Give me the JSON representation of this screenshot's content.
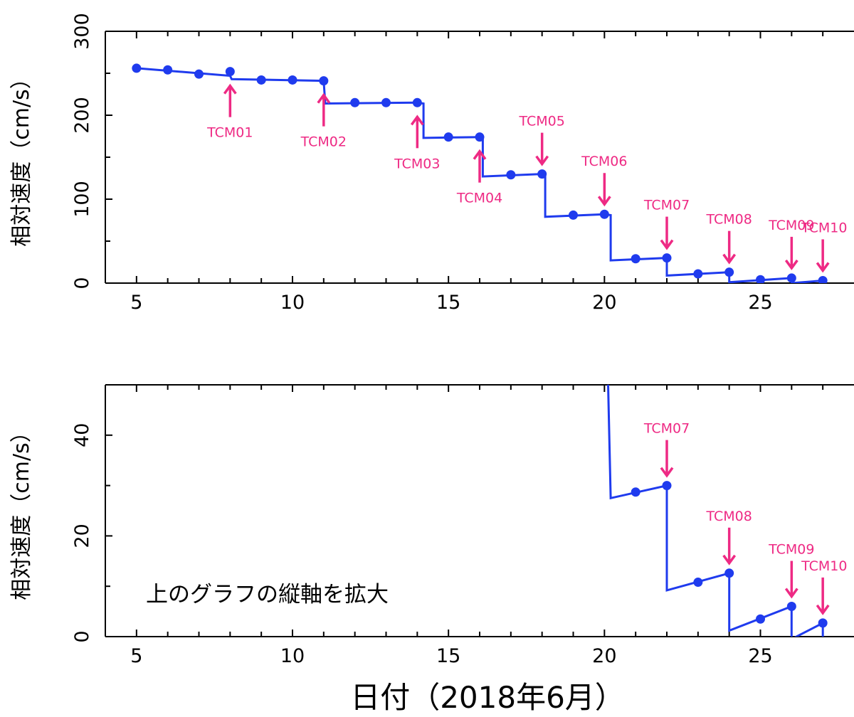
{
  "colors": {
    "series": "#1f3bee",
    "annotation": "#ee2a84",
    "axis": "#000000"
  },
  "xlabel": "日付（2018年6月）",
  "chart_data": [
    {
      "type": "line",
      "ylabel": "相対速度（cm/s）",
      "xlim": [
        4,
        28
      ],
      "ylim": [
        0,
        300
      ],
      "xticks": [
        5,
        10,
        15,
        20,
        25
      ],
      "yticks": [
        0,
        100,
        200,
        300
      ],
      "series": [
        {
          "points": [
            [
              5,
              256
            ],
            [
              6,
              254
            ],
            [
              7,
              249
            ],
            [
              8,
              252
            ],
            [
              9,
              242
            ],
            [
              10,
              242
            ],
            [
              11,
              241
            ],
            [
              12,
              215
            ],
            [
              13,
              215
            ],
            [
              14,
              215
            ],
            [
              15,
              174
            ],
            [
              16,
              174
            ],
            [
              17,
              129
            ],
            [
              18,
              130
            ],
            [
              19,
              81
            ],
            [
              20,
              82
            ],
            [
              21,
              29
            ],
            [
              22,
              30
            ],
            [
              23,
              11
            ],
            [
              24,
              13
            ],
            [
              25,
              4
            ],
            [
              26,
              6
            ],
            [
              27,
              3
            ]
          ],
          "line": [
            [
              5,
              256
            ],
            [
              8,
              247
            ],
            [
              8.05,
              243
            ],
            [
              11,
              241
            ],
            [
              11.05,
              214
            ],
            [
              14,
              215
            ],
            [
              14.2,
              214
            ],
            [
              14.2,
              173
            ],
            [
              16,
              174
            ],
            [
              16.1,
              173
            ],
            [
              16.1,
              127
            ],
            [
              18,
              130
            ],
            [
              18.1,
              128
            ],
            [
              18.1,
              79
            ],
            [
              20,
              82
            ],
            [
              20.2,
              81
            ],
            [
              20.2,
              27
            ],
            [
              22,
              30
            ],
            [
              22,
              9
            ],
            [
              24,
              13
            ],
            [
              24,
              1
            ],
            [
              26,
              6
            ],
            [
              26,
              0
            ],
            [
              27,
              3
            ]
          ]
        }
      ],
      "annotations": [
        {
          "label": "TCM01",
          "x": 8,
          "dir": "up"
        },
        {
          "label": "TCM02",
          "x": 11,
          "dir": "up"
        },
        {
          "label": "TCM03",
          "x": 14,
          "dir": "up"
        },
        {
          "label": "TCM04",
          "x": 16,
          "dir": "up"
        },
        {
          "label": "TCM05",
          "x": 18,
          "dir": "down"
        },
        {
          "label": "TCM06",
          "x": 20,
          "dir": "down"
        },
        {
          "label": "TCM07",
          "x": 22,
          "dir": "down"
        },
        {
          "label": "TCM08",
          "x": 24,
          "dir": "down"
        },
        {
          "label": "TCM09",
          "x": 26,
          "dir": "down"
        },
        {
          "label": "TCM10",
          "x": 27,
          "dir": "down"
        }
      ]
    },
    {
      "type": "line",
      "ylabel": "相対速度（cm/s）",
      "xlim": [
        4,
        28
      ],
      "ylim": [
        0,
        50
      ],
      "xticks": [
        5,
        10,
        15,
        20,
        25
      ],
      "yticks": [
        0,
        20,
        40
      ],
      "note": "上のグラフの縦軸を拡大",
      "series": [
        {
          "points": [
            [
              21,
              28.7
            ],
            [
              22,
              30
            ],
            [
              23,
              10.8
            ],
            [
              24,
              12.6
            ],
            [
              25,
              3.5
            ],
            [
              26,
              6
            ],
            [
              27,
              2.7
            ]
          ],
          "line": [
            [
              20.1,
              55
            ],
            [
              20.2,
              27.5
            ],
            [
              22,
              30
            ],
            [
              22,
              9.2
            ],
            [
              24,
              12.6
            ],
            [
              24,
              1.2
            ],
            [
              26,
              6
            ],
            [
              26,
              -0.5
            ],
            [
              27,
              2.7
            ],
            [
              27,
              -1
            ]
          ]
        }
      ],
      "annotations": [
        {
          "label": "TCM07",
          "x": 22,
          "dir": "down"
        },
        {
          "label": "TCM08",
          "x": 24,
          "dir": "down"
        },
        {
          "label": "TCM09",
          "x": 26,
          "dir": "down"
        },
        {
          "label": "TCM10",
          "x": 27,
          "dir": "down"
        }
      ]
    }
  ]
}
